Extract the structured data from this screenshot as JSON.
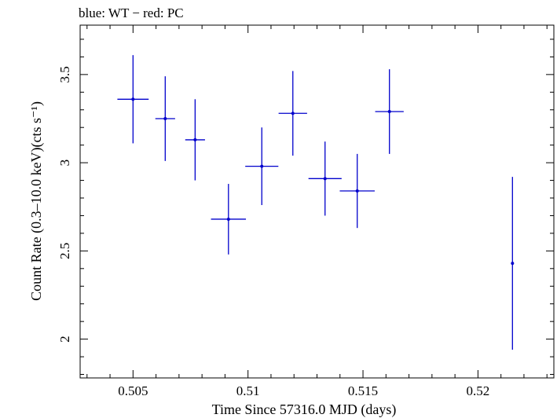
{
  "chart_data": {
    "type": "scatter",
    "title": "blue: WT − red: PC",
    "xlabel": "Time Since 57316.0 MJD (days)",
    "ylabel": "Count Rate (0.3–10.0 keV)(cts s⁻¹)",
    "xlim": [
      0.5027,
      0.5233
    ],
    "ylim": [
      1.78,
      3.78
    ],
    "x_ticks": [
      0.505,
      0.51,
      0.515,
      0.52
    ],
    "x_tick_labels": [
      "0.505",
      "0.51",
      "0.515",
      "0.52"
    ],
    "y_ticks": [
      2,
      2.5,
      3,
      3.5
    ],
    "y_tick_labels": [
      "2",
      "2.5",
      "3",
      "3.5"
    ],
    "grid": false,
    "series": [
      {
        "name": "WT",
        "color": "#0000cc",
        "points": [
          {
            "x": 0.505,
            "y": 3.36,
            "xerr": 0.00068,
            "yerr": 0.25
          },
          {
            "x": 0.5064,
            "y": 3.25,
            "xerr": 0.00043,
            "yerr": 0.24
          },
          {
            "x": 0.5077,
            "y": 3.13,
            "xerr": 0.00043,
            "yerr": 0.23
          },
          {
            "x": 0.50915,
            "y": 2.68,
            "xerr": 0.00076,
            "yerr": 0.2
          },
          {
            "x": 0.5106,
            "y": 2.98,
            "xerr": 0.00072,
            "yerr": 0.22
          },
          {
            "x": 0.51195,
            "y": 3.28,
            "xerr": 0.00062,
            "yerr": 0.24
          },
          {
            "x": 0.51335,
            "y": 2.91,
            "xerr": 0.00072,
            "yerr": 0.21
          },
          {
            "x": 0.51475,
            "y": 2.84,
            "xerr": 0.00076,
            "yerr": 0.21
          },
          {
            "x": 0.51615,
            "y": 3.29,
            "xerr": 0.00062,
            "yerr": 0.24
          },
          {
            "x": 0.5215,
            "y": 2.43,
            "xerr": 0.0,
            "yerr": 0.49
          }
        ]
      }
    ]
  }
}
